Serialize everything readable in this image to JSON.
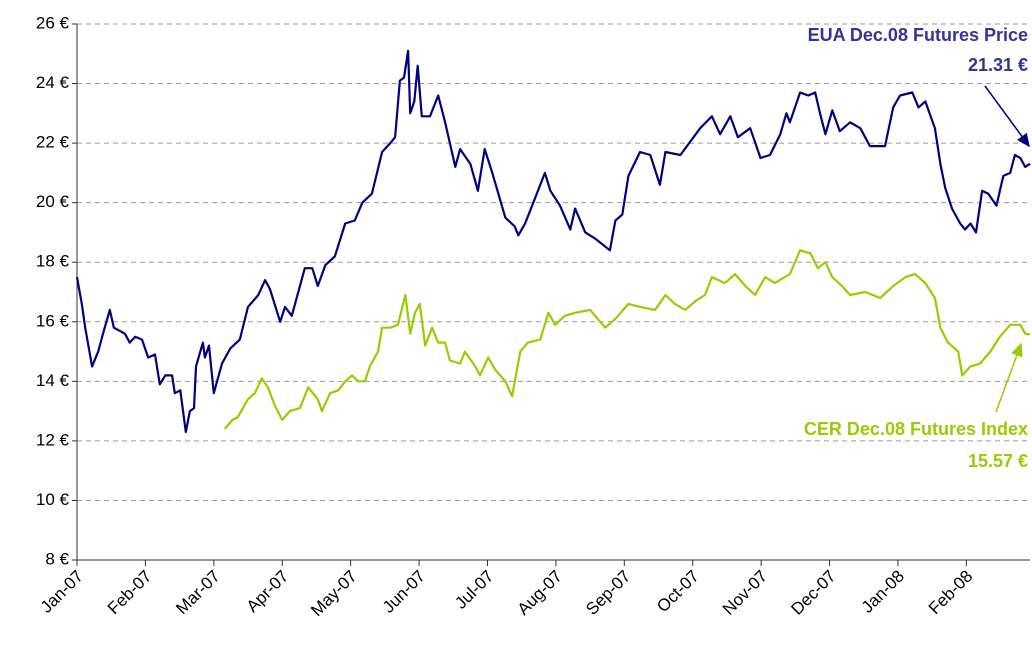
{
  "chart_data": {
    "type": "line",
    "series": [
      {
        "name": "EUA Dec.08 Futures Price",
        "color": "#000080",
        "x": [
          0,
          0.07,
          0.12,
          0.22,
          0.31,
          0.38,
          0.48,
          0.54,
          0.7,
          0.77,
          0.85,
          0.95,
          1.04,
          1.14,
          1.21,
          1.29,
          1.39,
          1.43,
          1.51,
          1.59,
          1.65,
          1.71,
          1.74,
          1.84,
          1.87,
          1.93,
          2.0,
          2.12,
          2.24,
          2.38,
          2.5,
          2.65,
          2.75,
          2.82,
          2.97,
          3.04,
          3.14,
          3.33,
          3.44,
          3.52,
          3.63,
          3.77,
          3.92,
          4.06,
          4.17,
          4.31,
          4.46,
          4.58,
          4.65,
          4.72,
          4.78,
          4.84,
          4.87,
          4.93,
          4.98,
          5.04,
          5.16,
          5.28,
          5.38,
          5.53,
          5.6,
          5.75,
          5.86,
          5.96,
          6.07,
          6.26,
          6.4,
          6.45,
          6.55,
          6.67,
          6.84,
          6.92,
          7.06,
          7.21,
          7.28,
          7.43,
          7.57,
          7.79,
          7.87,
          7.97,
          8.06,
          8.23,
          8.38,
          8.52,
          8.6,
          8.82,
          9.11,
          9.28,
          9.4,
          9.55,
          9.66,
          9.84,
          9.99,
          10.13,
          10.28,
          10.37,
          10.42,
          10.57,
          10.69,
          10.79,
          10.86,
          10.94,
          11.04,
          11.15,
          11.3,
          11.45,
          11.59,
          11.81,
          11.93,
          12.03,
          12.21,
          12.3,
          12.4,
          12.54,
          12.62,
          12.69,
          12.79,
          12.91,
          12.98,
          13.06,
          13.14,
          13.23,
          13.32,
          13.44,
          13.54,
          13.64,
          13.71,
          13.79,
          13.86,
          13.93
        ],
        "values": [
          17.5,
          16.6,
          15.8,
          14.5,
          15.0,
          15.6,
          16.4,
          15.8,
          15.6,
          15.3,
          15.5,
          15.4,
          14.8,
          14.9,
          13.9,
          14.2,
          14.2,
          13.6,
          13.7,
          12.3,
          13.0,
          13.1,
          14.5,
          15.3,
          14.8,
          15.2,
          13.6,
          14.6,
          15.1,
          15.4,
          16.5,
          16.9,
          17.4,
          17.1,
          16.0,
          16.5,
          16.2,
          17.8,
          17.8,
          17.2,
          17.9,
          18.2,
          19.3,
          19.4,
          20.0,
          20.3,
          21.7,
          22.0,
          22.2,
          24.1,
          24.2,
          25.1,
          23.0,
          23.4,
          24.6,
          22.9,
          22.9,
          23.6,
          22.7,
          21.2,
          21.8,
          21.3,
          20.4,
          21.8,
          21.0,
          19.5,
          19.2,
          18.9,
          19.3,
          20.0,
          21.0,
          20.4,
          19.9,
          19.1,
          19.8,
          19.0,
          18.8,
          18.4,
          19.4,
          19.6,
          20.9,
          21.7,
          21.6,
          20.6,
          21.7,
          21.6,
          22.5,
          22.9,
          22.3,
          22.9,
          22.2,
          22.5,
          21.5,
          21.6,
          22.3,
          23.0,
          22.7,
          23.7,
          23.6,
          23.7,
          23.0,
          22.3,
          23.1,
          22.4,
          22.7,
          22.5,
          21.9,
          21.9,
          23.2,
          23.6,
          23.7,
          23.2,
          23.4,
          22.5,
          21.3,
          20.5,
          19.8,
          19.3,
          19.1,
          19.3,
          19.0,
          20.4,
          20.3,
          19.9,
          20.9,
          21.0,
          21.6,
          21.5,
          21.2,
          21.31
        ]
      },
      {
        "name": "CER Dec.08 Futures Index",
        "color": "#99cc00",
        "x": [
          2.16,
          2.27,
          2.35,
          2.5,
          2.6,
          2.7,
          2.79,
          2.89,
          3.0,
          3.11,
          3.26,
          3.38,
          3.52,
          3.58,
          3.7,
          3.82,
          3.92,
          4.02,
          4.11,
          4.21,
          4.28,
          4.4,
          4.46,
          4.58,
          4.69,
          4.8,
          4.87,
          4.94,
          5.01,
          5.09,
          5.19,
          5.28,
          5.38,
          5.45,
          5.6,
          5.67,
          5.82,
          5.89,
          6.01,
          6.11,
          6.26,
          6.36,
          6.48,
          6.59,
          6.77,
          6.89,
          6.99,
          7.13,
          7.28,
          7.5,
          7.72,
          7.87,
          8.06,
          8.23,
          8.45,
          8.6,
          8.74,
          8.89,
          9.04,
          9.18,
          9.28,
          9.47,
          9.62,
          9.77,
          9.91,
          10.06,
          10.2,
          10.42,
          10.57,
          10.72,
          10.83,
          10.94,
          11.04,
          11.18,
          11.3,
          11.52,
          11.74,
          11.93,
          12.11,
          12.25,
          12.4,
          12.54,
          12.62,
          12.73,
          12.88,
          12.94,
          13.06,
          13.2,
          13.35,
          13.49,
          13.64,
          13.79,
          13.86,
          13.93
        ],
        "values": [
          12.4,
          12.7,
          12.8,
          13.4,
          13.6,
          14.1,
          13.8,
          13.2,
          12.7,
          13.0,
          13.1,
          13.8,
          13.4,
          13.0,
          13.6,
          13.7,
          14.0,
          14.2,
          14.0,
          14.0,
          14.5,
          15.0,
          15.8,
          15.8,
          15.9,
          16.9,
          15.6,
          16.3,
          16.6,
          15.2,
          15.8,
          15.3,
          15.3,
          14.7,
          14.6,
          15.0,
          14.5,
          14.2,
          14.8,
          14.4,
          14.0,
          13.5,
          15.0,
          15.3,
          15.4,
          16.3,
          15.9,
          16.2,
          16.3,
          16.4,
          15.8,
          16.1,
          16.6,
          16.5,
          16.4,
          16.9,
          16.6,
          16.4,
          16.7,
          16.9,
          17.5,
          17.3,
          17.6,
          17.2,
          16.9,
          17.5,
          17.3,
          17.6,
          18.4,
          18.3,
          17.8,
          18.0,
          17.5,
          17.2,
          16.9,
          17.0,
          16.8,
          17.2,
          17.5,
          17.6,
          17.3,
          16.8,
          15.8,
          15.3,
          15.0,
          14.2,
          14.5,
          14.6,
          15.0,
          15.5,
          15.9,
          15.9,
          15.6,
          15.57
        ]
      }
    ],
    "annotations": [
      "EUA Dec.08 Futures Price",
      "21.31 €",
      "CER Dec.08 Futures Index",
      "15.57 €"
    ],
    "xlim": [
      0,
      13.93
    ],
    "xticks": [
      {
        "value": 0,
        "label": "Jan-07"
      },
      {
        "value": 1,
        "label": "Feb-07"
      },
      {
        "value": 2,
        "label": "Mar-07"
      },
      {
        "value": 3,
        "label": "Apr-07"
      },
      {
        "value": 4,
        "label": "May-07"
      },
      {
        "value": 5,
        "label": "Jun-07"
      },
      {
        "value": 6,
        "label": "Jul-07"
      },
      {
        "value": 7,
        "label": "Aug-07"
      },
      {
        "value": 8,
        "label": "Sep-07"
      },
      {
        "value": 9,
        "label": "Oct-07"
      },
      {
        "value": 10,
        "label": "Nov-07"
      },
      {
        "value": 11,
        "label": "Dec-07"
      },
      {
        "value": 12,
        "label": "Jan-08"
      },
      {
        "value": 13,
        "label": "Feb-08"
      }
    ],
    "ylim": [
      8,
      26
    ],
    "yticks": [
      {
        "value": 8,
        "label": "8 €"
      },
      {
        "value": 10,
        "label": "10 €"
      },
      {
        "value": 12,
        "label": "12 €"
      },
      {
        "value": 14,
        "label": "14 €"
      },
      {
        "value": 16,
        "label": "16 €"
      },
      {
        "value": 18,
        "label": "18 €"
      },
      {
        "value": 20,
        "label": "20 €"
      },
      {
        "value": 22,
        "label": "22 €"
      },
      {
        "value": 24,
        "label": "24 €"
      },
      {
        "value": 26,
        "label": "26 €"
      }
    ],
    "grid": true
  }
}
